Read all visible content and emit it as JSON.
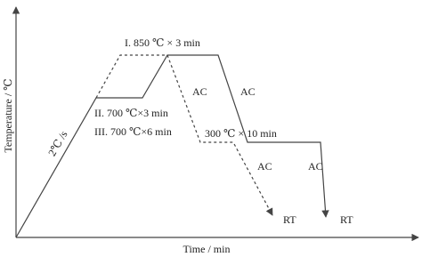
{
  "diagram": {
    "axis_labels": {
      "y": "Temperature / ℃",
      "x": "Time / min"
    },
    "rate": "2℃ /s",
    "stages": [
      "I. 850 ℃ × 3 min",
      "II. 700 ℃×3 min",
      "III. 700 ℃×6 min",
      "300 ℃ × 10 min"
    ],
    "cooling": [
      "AC",
      "AC",
      "AC",
      "AC"
    ],
    "end": [
      "RT",
      "RT"
    ]
  }
}
